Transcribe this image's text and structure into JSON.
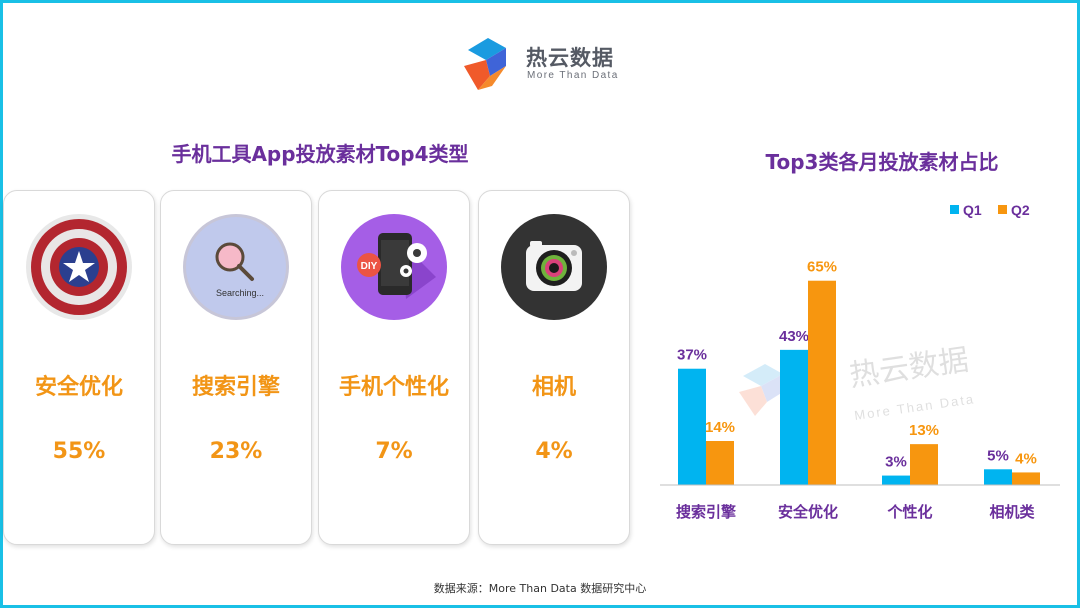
{
  "logo": {
    "title": "热云数据",
    "subtitle": "More Than Data"
  },
  "left_section": {
    "title": "手机工具App投放素材Top4类型",
    "cards": [
      {
        "name": "安全优化",
        "value": "55%",
        "icon": "shield-icon",
        "icon_text": ""
      },
      {
        "name": "搜索引擎",
        "value": "23%",
        "icon": "magnifier-icon",
        "icon_text": "Searching..."
      },
      {
        "name": "手机个性化",
        "value": "7%",
        "icon": "phone-diy-icon",
        "icon_text": "DIY"
      },
      {
        "name": "相机",
        "value": "4%",
        "icon": "camera-icon",
        "icon_text": ""
      }
    ]
  },
  "chart_data": {
    "type": "bar",
    "title": "Top3类各月投放素材占比",
    "categories": [
      "搜索引擎",
      "安全优化",
      "个性化",
      "相机类"
    ],
    "series": [
      {
        "name": "Q1",
        "values": [
          37,
          43,
          3,
          5
        ],
        "labels": [
          "37%",
          "43%",
          "3%",
          "5%"
        ],
        "color": "#00b4f0"
      },
      {
        "name": "Q2",
        "values": [
          14,
          65,
          13,
          4
        ],
        "labels": [
          "14%",
          "65%",
          "13%",
          "4%"
        ],
        "color": "#f7960f"
      }
    ],
    "ylim": [
      0,
      70
    ],
    "legend": "top-right",
    "grid": false,
    "label_color": "#6a2f9c"
  },
  "watermark": {
    "title": "热云数据",
    "subtitle": "More Than Data"
  },
  "footer": {
    "source": "数据来源：More Than Data 数据研究中心"
  }
}
